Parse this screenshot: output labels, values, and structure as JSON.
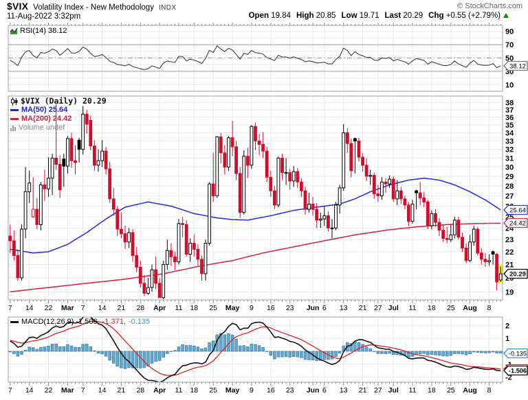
{
  "header": {
    "symbol": "$VIX",
    "title": "Volatility Index - New Methodology",
    "exchange": "INDX",
    "copyright": "© StockCharts.com",
    "datetime": "11-Aug-2022 3:32pm",
    "quote": [
      {
        "label": "Open",
        "value": "19.84"
      },
      {
        "label": "High",
        "value": "20.85"
      },
      {
        "label": "Low",
        "value": "19.71"
      },
      {
        "label": "Last",
        "value": "20.29"
      },
      {
        "label": "Chg",
        "value": "+0.55 (+2.79%)"
      }
    ],
    "direction": "up"
  },
  "rsi_panel": {
    "label": "RSI(14) 38.12",
    "last_value": 38.12,
    "ticks": [
      90,
      70,
      50,
      30,
      10
    ],
    "overbought": 70,
    "oversold": 30,
    "midline": 50
  },
  "main_panel": {
    "legend": {
      "symbol_line": "$VIX (Daily) 20.29",
      "ma50": "MA(50) 25.64",
      "ma200": "MA(200) 24.42",
      "volume": "Volume undef"
    },
    "last_close": 20.29,
    "ma50_last": 25.64,
    "ma200_last": 24.42,
    "y_ticks": [
      19,
      20,
      21,
      22,
      23,
      24,
      25,
      26,
      27,
      28,
      29,
      30,
      31,
      32,
      33,
      34,
      35,
      36,
      37,
      38
    ]
  },
  "macd_panel": {
    "label_macd": "MACD(12,26,9) -1.506,",
    "label_signal": "-1.371,",
    "label_hist": "-0.135",
    "macd_last": -1.506,
    "signal_last": -1.371,
    "hist_last": -0.135,
    "ticks": [
      2,
      1,
      -1,
      -2
    ]
  },
  "colors": {
    "candle_up": "#000000",
    "candle_down": "#cc0f2e",
    "ma50": "#3333cc",
    "ma200": "#cc2b4b",
    "macd_line": "#111111",
    "signal_line": "#e02020",
    "hist_fill": "#62a8d0",
    "hist_stroke": "#39769f",
    "rsi_line": "#3c3c3c",
    "grid": "#e8e8e8",
    "border": "#a0a0a0",
    "highlight": "#ffff00",
    "up_arrow": "#009900",
    "box_blue": "#3344bb",
    "box_red": "#cc3355",
    "box_gray": "#777777",
    "box_black": "#000000",
    "box_macd_blue": "#3399cc",
    "box_macd_red": "#d42222"
  },
  "x_axis": {
    "ticks": [
      {
        "i": 0,
        "l": "7",
        "b": 0
      },
      {
        "i": 5,
        "l": "14",
        "b": 0
      },
      {
        "i": 10,
        "l": "22",
        "b": 0
      },
      {
        "i": 15,
        "l": "Mar",
        "b": 1
      },
      {
        "i": 19,
        "l": "7",
        "b": 0
      },
      {
        "i": 24,
        "l": "14",
        "b": 0
      },
      {
        "i": 29,
        "l": "21",
        "b": 0
      },
      {
        "i": 34,
        "l": "28",
        "b": 0
      },
      {
        "i": 39,
        "l": "Apr",
        "b": 1
      },
      {
        "i": 44,
        "l": "11",
        "b": 0
      },
      {
        "i": 48,
        "l": "18",
        "b": 0
      },
      {
        "i": 53,
        "l": "25",
        "b": 0
      },
      {
        "i": 58,
        "l": "May",
        "b": 1
      },
      {
        "i": 63,
        "l": "9",
        "b": 0
      },
      {
        "i": 68,
        "l": "16",
        "b": 0
      },
      {
        "i": 73,
        "l": "23",
        "b": 0
      },
      {
        "i": 79,
        "l": "Jun",
        "b": 1
      },
      {
        "i": 82,
        "l": "6",
        "b": 0
      },
      {
        "i": 87,
        "l": "13",
        "b": 0
      },
      {
        "i": 92,
        "l": "21",
        "b": 0
      },
      {
        "i": 96,
        "l": "27",
        "b": 0
      },
      {
        "i": 100,
        "l": "Jul",
        "b": 1
      },
      {
        "i": 105,
        "l": "11",
        "b": 0
      },
      {
        "i": 110,
        "l": "18",
        "b": 0
      },
      {
        "i": 115,
        "l": "25",
        "b": 0
      },
      {
        "i": 120,
        "l": "Aug",
        "b": 1
      },
      {
        "i": 125,
        "l": "8",
        "b": 0
      }
    ]
  },
  "chart_data": {
    "type": "candlestick+indicators",
    "log_scale": true,
    "main_ylim": [
      18.45,
      38.9
    ],
    "rsi_ylim": [
      0,
      100
    ],
    "macd_ylim": [
      -2.39,
      2.66
    ],
    "bars": [
      [
        23.3,
        24.3,
        21.9,
        22.9
      ],
      [
        22.9,
        23.8,
        21.3,
        21.7
      ],
      [
        21.7,
        22.2,
        19.8,
        20.0
      ],
      [
        20.0,
        24.3,
        19.8,
        23.9
      ],
      [
        23.9,
        30.0,
        23.1,
        27.4
      ],
      [
        27.4,
        29.6,
        26.3,
        28.3
      ],
      [
        25.0,
        28.9,
        24.9,
        25.7
      ],
      [
        25.7,
        26.8,
        23.9,
        24.3
      ],
      [
        24.3,
        28.4,
        23.8,
        28.1
      ],
      [
        28.1,
        29.7,
        26.5,
        27.7
      ],
      [
        27.7,
        31.1,
        26.9,
        28.8
      ],
      [
        28.8,
        31.5,
        27.1,
        31.0
      ],
      [
        31.0,
        37.8,
        29.7,
        30.3
      ],
      [
        30.3,
        31.3,
        26.8,
        27.6
      ],
      [
        30.9,
        31.5,
        27.9,
        30.1
      ],
      [
        30.1,
        33.6,
        29.3,
        33.3
      ],
      [
        33.3,
        34.0,
        29.9,
        30.7
      ],
      [
        30.7,
        32.5,
        29.2,
        30.5
      ],
      [
        33.1,
        33.4,
        30.5,
        32.0
      ],
      [
        32.0,
        37.5,
        31.4,
        36.4
      ],
      [
        36.4,
        37.0,
        33.9,
        35.1
      ],
      [
        35.6,
        36.2,
        31.9,
        32.4
      ],
      [
        32.4,
        33.1,
        29.6,
        30.2
      ],
      [
        30.2,
        32.0,
        29.5,
        30.7
      ],
      [
        30.7,
        33.1,
        30.0,
        31.8
      ],
      [
        31.8,
        32.3,
        29.2,
        29.8
      ],
      [
        29.8,
        30.6,
        26.3,
        26.7
      ],
      [
        26.7,
        27.8,
        25.1,
        25.7
      ],
      [
        25.7,
        26.0,
        23.3,
        23.9
      ],
      [
        23.9,
        25.4,
        23.1,
        23.5
      ],
      [
        23.5,
        24.2,
        22.2,
        22.8
      ],
      [
        22.8,
        24.0,
        22.3,
        23.6
      ],
      [
        23.6,
        23.9,
        21.2,
        21.7
      ],
      [
        21.7,
        22.4,
        20.4,
        20.8
      ],
      [
        20.8,
        21.3,
        19.3,
        19.6
      ],
      [
        19.6,
        20.2,
        18.7,
        18.9
      ],
      [
        18.9,
        20.0,
        18.8,
        19.3
      ],
      [
        19.3,
        21.0,
        19.0,
        20.6
      ],
      [
        20.6,
        21.6,
        19.2,
        19.6
      ],
      [
        19.6,
        20.0,
        18.6,
        18.6
      ],
      [
        18.6,
        21.3,
        18.5,
        21.0
      ],
      [
        21.0,
        23.0,
        20.6,
        22.1
      ],
      [
        22.1,
        22.7,
        20.9,
        21.6
      ],
      [
        21.6,
        22.0,
        20.6,
        21.2
      ],
      [
        21.2,
        24.8,
        21.0,
        24.4
      ],
      [
        24.4,
        25.0,
        23.2,
        24.3
      ],
      [
        24.3,
        24.7,
        21.6,
        21.8
      ],
      [
        21.8,
        23.1,
        21.2,
        22.7
      ],
      [
        22.7,
        23.4,
        21.6,
        22.2
      ],
      [
        22.2,
        22.6,
        20.9,
        21.4
      ],
      [
        21.4,
        21.7,
        19.8,
        20.3
      ],
      [
        20.3,
        23.0,
        19.8,
        22.7
      ],
      [
        22.7,
        28.4,
        22.5,
        28.2
      ],
      [
        28.2,
        31.6,
        26.4,
        27.0
      ],
      [
        27.0,
        33.6,
        26.8,
        33.5
      ],
      [
        33.5,
        34.0,
        30.4,
        31.6
      ],
      [
        31.6,
        32.5,
        29.2,
        30.0
      ],
      [
        30.0,
        33.6,
        29.6,
        33.4
      ],
      [
        33.4,
        35.5,
        31.2,
        32.3
      ],
      [
        32.3,
        33.0,
        28.6,
        29.3
      ],
      [
        29.3,
        30.0,
        24.9,
        25.4
      ],
      [
        25.4,
        31.9,
        25.2,
        31.2
      ],
      [
        31.2,
        32.2,
        28.8,
        30.2
      ],
      [
        30.2,
        35.0,
        29.8,
        34.8
      ],
      [
        34.8,
        35.3,
        31.9,
        33.0
      ],
      [
        33.0,
        33.9,
        31.3,
        32.6
      ],
      [
        32.6,
        34.1,
        31.0,
        31.8
      ],
      [
        31.8,
        32.3,
        28.4,
        28.9
      ],
      [
        28.9,
        29.6,
        26.9,
        27.5
      ],
      [
        27.5,
        28.0,
        25.7,
        26.1
      ],
      [
        26.1,
        31.2,
        25.9,
        31.0
      ],
      [
        31.0,
        31.5,
        28.6,
        29.4
      ],
      [
        29.4,
        31.0,
        28.1,
        29.4
      ],
      [
        29.4,
        29.8,
        27.6,
        28.5
      ],
      [
        28.5,
        30.1,
        27.9,
        29.5
      ],
      [
        29.5,
        29.9,
        27.8,
        28.4
      ],
      [
        28.4,
        28.8,
        26.9,
        27.5
      ],
      [
        27.5,
        27.9,
        25.2,
        25.7
      ],
      [
        25.7,
        27.3,
        25.4,
        26.2
      ],
      [
        26.2,
        26.9,
        25.1,
        25.7
      ],
      [
        25.7,
        26.3,
        24.0,
        24.7
      ],
      [
        24.7,
        25.4,
        24.0,
        24.8
      ],
      [
        24.8,
        26.0,
        24.2,
        25.1
      ],
      [
        25.1,
        25.5,
        23.7,
        24.0
      ],
      [
        24.0,
        24.8,
        23.1,
        24.0
      ],
      [
        24.0,
        26.4,
        23.8,
        26.1
      ],
      [
        26.1,
        28.1,
        25.3,
        27.8
      ],
      [
        27.8,
        35.1,
        27.5,
        34.0
      ],
      [
        34.0,
        34.6,
        31.6,
        32.7
      ],
      [
        32.7,
        33.3,
        28.9,
        29.6
      ],
      [
        33.3,
        33.4,
        29.3,
        33.0
      ],
      [
        33.0,
        33.4,
        30.6,
        31.1
      ],
      [
        31.1,
        31.6,
        29.5,
        30.2
      ],
      [
        30.2,
        31.0,
        28.5,
        29.0
      ],
      [
        29.0,
        29.7,
        28.1,
        29.1
      ],
      [
        29.1,
        29.4,
        26.7,
        27.2
      ],
      [
        27.2,
        28.1,
        26.4,
        27.0
      ],
      [
        27.0,
        28.9,
        26.6,
        28.4
      ],
      [
        28.4,
        28.8,
        27.3,
        28.2
      ],
      [
        28.2,
        29.1,
        27.8,
        28.7
      ],
      [
        28.7,
        29.0,
        26.4,
        26.7
      ],
      [
        26.7,
        28.6,
        26.1,
        27.5
      ],
      [
        27.5,
        27.9,
        26.2,
        26.7
      ],
      [
        26.7,
        27.0,
        25.7,
        26.1
      ],
      [
        26.1,
        26.4,
        24.2,
        24.6
      ],
      [
        24.6,
        26.6,
        24.4,
        26.2
      ],
      [
        27.5,
        27.6,
        25.7,
        27.3
      ],
      [
        27.3,
        28.4,
        26.1,
        26.8
      ],
      [
        26.8,
        27.4,
        25.9,
        26.4
      ],
      [
        26.4,
        26.6,
        23.9,
        24.2
      ],
      [
        24.2,
        25.6,
        23.9,
        25.3
      ],
      [
        25.3,
        25.7,
        24.1,
        24.5
      ],
      [
        24.5,
        24.9,
        23.3,
        23.8
      ],
      [
        23.8,
        24.3,
        22.8,
        23.1
      ],
      [
        23.1,
        24.1,
        22.7,
        23.0
      ],
      [
        23.0,
        24.3,
        22.8,
        23.4
      ],
      [
        23.4,
        25.0,
        23.1,
        24.7
      ],
      [
        24.7,
        25.0,
        23.0,
        23.2
      ],
      [
        23.2,
        23.6,
        22.0,
        22.3
      ],
      [
        22.3,
        22.7,
        21.1,
        21.3
      ],
      [
        21.3,
        23.4,
        21.2,
        22.8
      ],
      [
        22.8,
        24.2,
        22.5,
        23.9
      ],
      [
        23.9,
        24.1,
        21.7,
        21.9
      ],
      [
        21.9,
        22.3,
        21.0,
        21.4
      ],
      [
        21.4,
        21.9,
        20.8,
        21.2
      ],
      [
        21.2,
        21.8,
        20.9,
        21.3
      ],
      [
        22.0,
        22.1,
        21.0,
        21.8
      ],
      [
        21.8,
        21.9,
        19.1,
        19.7
      ],
      [
        19.84,
        20.85,
        19.71,
        20.29
      ]
    ],
    "ma50_points": [
      [
        0,
        22.2
      ],
      [
        6,
        21.9
      ],
      [
        10,
        22.0
      ],
      [
        15,
        22.6
      ],
      [
        20,
        23.6
      ],
      [
        25,
        24.8
      ],
      [
        30,
        25.9
      ],
      [
        36,
        26.4
      ],
      [
        42,
        26.0
      ],
      [
        48,
        25.3
      ],
      [
        54,
        24.9
      ],
      [
        58,
        24.75
      ],
      [
        62,
        24.7
      ],
      [
        68,
        25.1
      ],
      [
        74,
        25.6
      ],
      [
        80,
        25.9
      ],
      [
        86,
        26.2
      ],
      [
        90,
        26.7
      ],
      [
        94,
        27.4
      ],
      [
        99,
        28.1
      ],
      [
        104,
        28.6
      ],
      [
        108,
        28.8
      ],
      [
        112,
        28.6
      ],
      [
        116,
        28.1
      ],
      [
        120,
        27.4
      ],
      [
        124,
        26.6
      ],
      [
        128,
        25.64
      ]
    ],
    "ma200_points": [
      [
        0,
        19.0
      ],
      [
        10,
        19.3
      ],
      [
        20,
        19.6
      ],
      [
        30,
        19.9
      ],
      [
        40,
        20.3
      ],
      [
        50,
        20.9
      ],
      [
        58,
        21.3
      ],
      [
        66,
        21.9
      ],
      [
        74,
        22.4
      ],
      [
        82,
        22.9
      ],
      [
        90,
        23.4
      ],
      [
        98,
        23.8
      ],
      [
        106,
        24.1
      ],
      [
        114,
        24.3
      ],
      [
        122,
        24.4
      ],
      [
        128,
        24.42
      ]
    ],
    "rsi_seed": {
      "gain": 0.55,
      "loss": 0.6
    },
    "macd_seed": {
      "ema12": 23.4,
      "ema26": 22.5,
      "signal": 0.85
    }
  }
}
